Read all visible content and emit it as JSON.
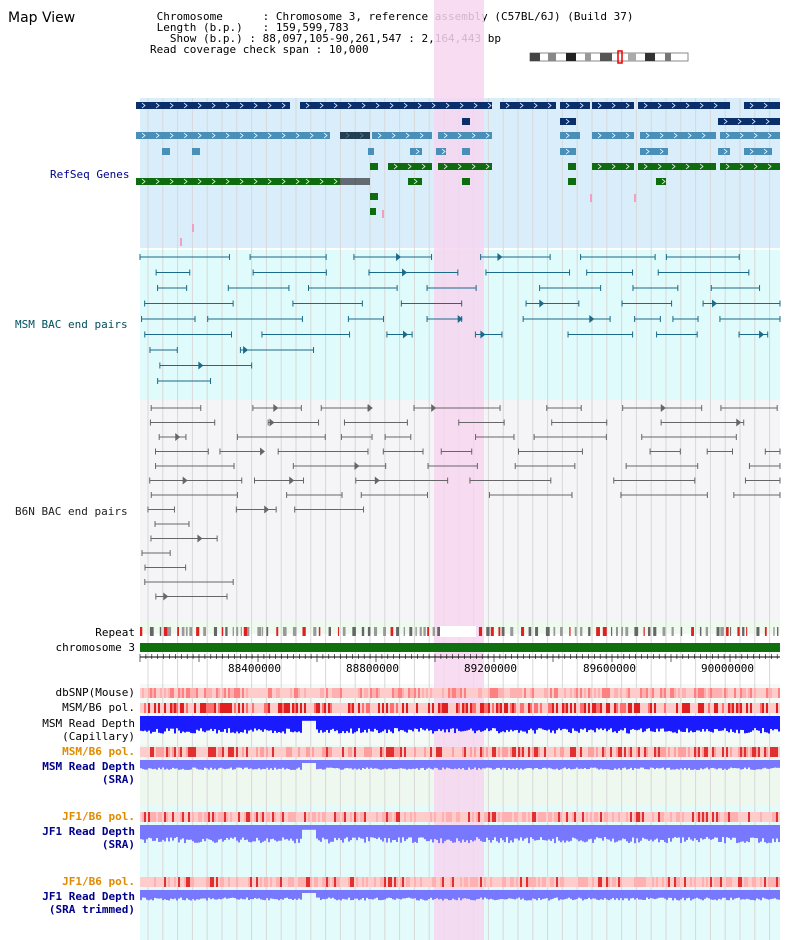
{
  "page": {
    "title": "Map View"
  },
  "info": {
    "chromosome_key": "Chromosome",
    "chromosome_val": "Chromosome 3, reference assembly (C57BL/6J) (Build 37)",
    "length_key": "Length (b.p.)",
    "length_val": "159,599,783",
    "show_key": "Show (b.p.)",
    "show_val": "88,097,105-90,261,547 : 2,164,443 bp",
    "coverage_key": "Read coverage check span",
    "coverage_val": "10,000"
  },
  "tracks": {
    "refseq": "RefSeq Genes",
    "msm_bac": "MSM BAC end pairs",
    "b6n_bac": "B6N BAC end pairs",
    "repeat": "Repeat",
    "chromosome": "chromosome 3",
    "dbsnp": "dbSNP(Mouse)",
    "msm_b6_pol": "MSM/B6 pol.",
    "msm_read_depth_cap_1": "MSM Read Depth",
    "msm_read_depth_cap_2": "(Capillary)",
    "msm_b6_pol_2": "MSM/B6 pol.",
    "msm_read_depth_sra_1": "MSM Read Depth",
    "msm_read_depth_sra_2": "(SRA)",
    "jf1_b6_pol": "JF1/B6 pol.",
    "jf1_read_depth_sra_1": "JF1 Read Depth",
    "jf1_read_depth_sra_2": "(SRA)",
    "jf1_b6_pol_2": "JF1/B6 pol.",
    "jf1_read_depth_trim_1": "JF1 Read Depth",
    "jf1_read_depth_trim_2": "(SRA trimmed)"
  },
  "axis": {
    "ticks": [
      "88400000",
      "88800000",
      "89200000",
      "89600000",
      "90000000"
    ]
  },
  "colors": {
    "navy": "#0b2f6b",
    "teal_gene": "#4a8fb8",
    "green_gene": "#0e6b0e",
    "refseq_bg": "#d9eefa",
    "msm_bg": "#e0fbfb",
    "b6n_bg": "#f5f5f8",
    "highlight": "#f6d6f0",
    "chromosome_bar": "#107010",
    "label_blue": "#00008b",
    "label_orange": "#e08a00",
    "depth_blue": "#1a1aff",
    "depth_light": "#7878ff"
  }
}
